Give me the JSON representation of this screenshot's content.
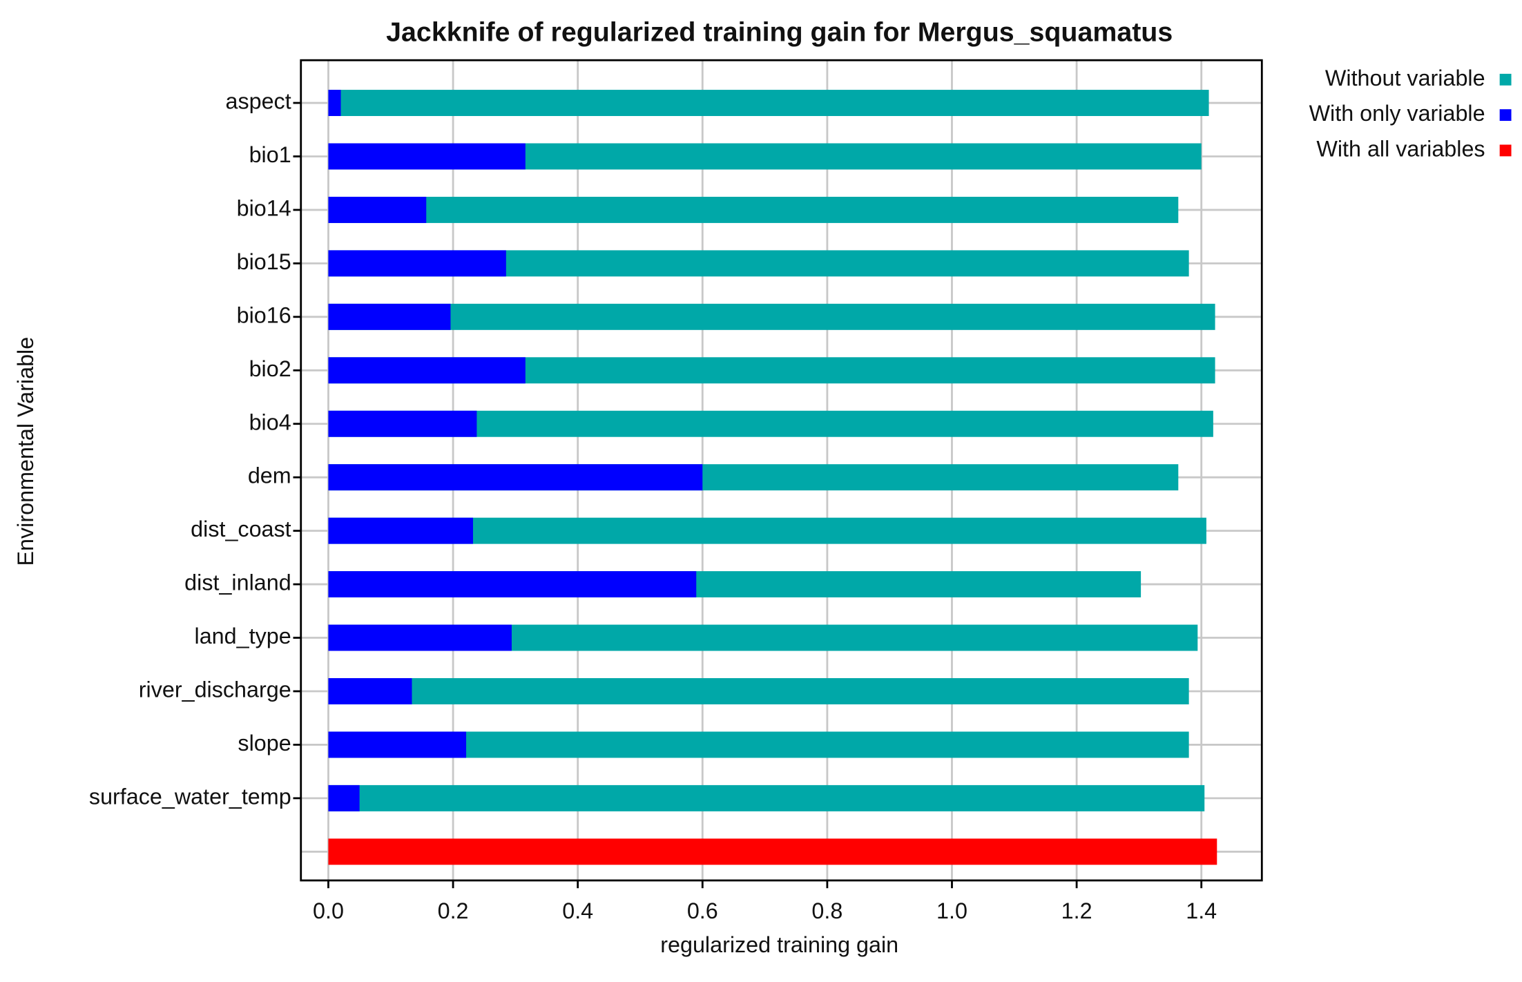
{
  "chart_data": {
    "type": "bar",
    "orientation": "horizontal",
    "overlay": true,
    "title": "Jackknife of regularized training gain for Mergus_squamatus",
    "x_label": "regularized training gain",
    "y_label": "Environmental Variable",
    "categories": [
      "aspect",
      "bio1",
      "bio14",
      "bio15",
      "bio16",
      "bio2",
      "bio4",
      "dem",
      "dist_coast",
      "dist_inland",
      "land_type",
      "river_discharge",
      "slope",
      "surface_water_temp",
      null
    ],
    "series": [
      {
        "name": "Without variable",
        "color": "#00a8a8",
        "values": [
          1.412,
          1.4,
          1.363,
          1.38,
          1.422,
          1.422,
          1.419,
          1.363,
          1.408,
          1.303,
          1.394,
          1.38,
          1.38,
          1.405,
          null
        ]
      },
      {
        "name": "With only variable",
        "color": "#0000ff",
        "values": [
          0.02,
          0.316,
          0.157,
          0.285,
          0.196,
          0.316,
          0.238,
          0.6,
          0.232,
          0.59,
          0.294,
          0.134,
          0.221,
          0.05,
          null
        ]
      },
      {
        "name": "With all variables",
        "color": "#ff0000",
        "values": [
          null,
          null,
          null,
          null,
          null,
          null,
          null,
          null,
          null,
          null,
          null,
          null,
          null,
          null,
          1.425
        ]
      }
    ],
    "xlim": [
      -0.044,
      1.497
    ],
    "xticks": [
      {
        "value": 0,
        "label": "0.0"
      },
      0.2,
      0.4,
      0.6,
      0.8,
      {
        "value": 1,
        "label": "1.0"
      },
      1.2,
      1.4
    ],
    "grid": true,
    "legend": "upper right"
  }
}
